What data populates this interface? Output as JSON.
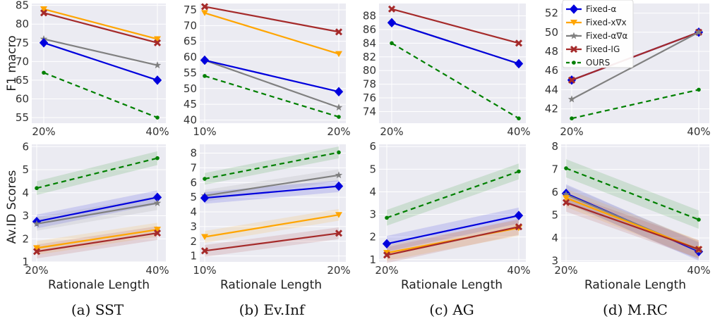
{
  "series_styles": {
    "Fixed-α": {
      "color": "#0000dd",
      "marker": "diamond",
      "dash": ""
    },
    "Fixed-x∇x": {
      "color": "#ffa500",
      "marker": "tri-down",
      "dash": ""
    },
    "Fixed-α∇α": {
      "color": "#808080",
      "marker": "star",
      "dash": ""
    },
    "Fixed-IG": {
      "color": "#a52a2a",
      "marker": "x",
      "dash": ""
    },
    "OURS": {
      "color": "#008000",
      "marker": "dot",
      "dash": "7,5"
    }
  },
  "legend": {
    "location": "top-right of panel (d), top row",
    "items": [
      "Fixed-α",
      "Fixed-x∇x",
      "Fixed-α∇α",
      "Fixed-IG",
      "OURS"
    ]
  },
  "row_labels": {
    "top_ylabel": "F1 macro",
    "bottom_ylabel": "Av.ID Scores",
    "xlabel": "Rationale Length"
  },
  "captions": [
    "(a) SST",
    "(b) Ev.Inf",
    "(c) AG",
    "(d) M.RC"
  ],
  "chart_data": [
    {
      "type": "line",
      "panel": "(a) SST",
      "row": "top",
      "categories": [
        "20%",
        "40%"
      ],
      "ylabel": "F1 macro",
      "yticks": [
        55,
        60,
        65,
        70,
        75,
        80,
        85
      ],
      "ylim": [
        53.5,
        85.5
      ],
      "series": [
        {
          "name": "Fixed-x∇x",
          "values": [
            84,
            76
          ]
        },
        {
          "name": "Fixed-IG",
          "values": [
            83,
            75
          ]
        },
        {
          "name": "Fixed-α∇α",
          "values": [
            76,
            69
          ]
        },
        {
          "name": "Fixed-α",
          "values": [
            75,
            65
          ]
        },
        {
          "name": "OURS",
          "values": [
            67,
            55
          ]
        }
      ]
    },
    {
      "type": "line",
      "panel": "(b) Ev.Inf",
      "row": "top",
      "categories": [
        "10%",
        "20%"
      ],
      "yticks": [
        40,
        45,
        50,
        55,
        60,
        65,
        70,
        75
      ],
      "ylim": [
        39,
        77
      ],
      "series": [
        {
          "name": "Fixed-IG",
          "values": [
            76,
            68
          ]
        },
        {
          "name": "Fixed-x∇x",
          "values": [
            74,
            61
          ]
        },
        {
          "name": "Fixed-α∇α",
          "values": [
            59,
            44
          ]
        },
        {
          "name": "Fixed-α",
          "values": [
            59,
            49
          ]
        },
        {
          "name": "OURS",
          "values": [
            54,
            41
          ]
        }
      ]
    },
    {
      "type": "line",
      "panel": "(c) AG",
      "row": "top",
      "categories": [
        "20%",
        "40%"
      ],
      "yticks": [
        74,
        76,
        78,
        80,
        82,
        84,
        86,
        88
      ],
      "ylim": [
        72.3,
        89.8
      ],
      "series": [
        {
          "name": "Fixed-IG",
          "values": [
            89,
            84
          ]
        },
        {
          "name": "Fixed-α∇α",
          "values": [
            87,
            81
          ]
        },
        {
          "name": "Fixed-α",
          "values": [
            87,
            81
          ]
        },
        {
          "name": "OURS",
          "values": [
            84,
            73
          ]
        }
      ]
    },
    {
      "type": "line",
      "panel": "(d) M.RC",
      "row": "top",
      "categories": [
        "20%",
        "40%"
      ],
      "yticks": [
        42,
        44,
        46,
        48,
        50,
        52
      ],
      "ylim": [
        40.5,
        53
      ],
      "series": [
        {
          "name": "Fixed-α",
          "values": [
            45,
            50
          ]
        },
        {
          "name": "Fixed-IG",
          "values": [
            45,
            50
          ]
        },
        {
          "name": "Fixed-α∇α",
          "values": [
            43,
            50
          ]
        },
        {
          "name": "OURS",
          "values": [
            41,
            44
          ]
        }
      ]
    },
    {
      "type": "line",
      "panel": "(a) SST",
      "row": "bottom",
      "categories": [
        "20%",
        "40%"
      ],
      "ylabel": "Av.ID Scores",
      "xlabel": "Rationale Length",
      "yticks": [
        1,
        2,
        3,
        4,
        5,
        6
      ],
      "ylim": [
        1,
        6.1
      ],
      "band": 0.3,
      "series": [
        {
          "name": "OURS",
          "values": [
            4.2,
            5.5
          ]
        },
        {
          "name": "Fixed-α",
          "values": [
            2.75,
            3.8
          ]
        },
        {
          "name": "Fixed-α∇α",
          "values": [
            2.65,
            3.55
          ]
        },
        {
          "name": "Fixed-x∇x",
          "values": [
            1.6,
            2.4
          ]
        },
        {
          "name": "Fixed-IG",
          "values": [
            1.45,
            2.25
          ]
        }
      ]
    },
    {
      "type": "line",
      "panel": "(b) Ev.Inf",
      "row": "bottom",
      "categories": [
        "10%",
        "20%"
      ],
      "xlabel": "Rationale Length",
      "yticks": [
        1,
        2,
        3,
        4,
        5,
        6,
        7,
        8
      ],
      "ylim": [
        0.6,
        8.6
      ],
      "band": 0.4,
      "series": [
        {
          "name": "OURS",
          "values": [
            6.25,
            8.05
          ]
        },
        {
          "name": "Fixed-α∇α",
          "values": [
            5.1,
            6.5
          ]
        },
        {
          "name": "Fixed-α",
          "values": [
            4.95,
            5.75
          ]
        },
        {
          "name": "Fixed-x∇x",
          "values": [
            2.3,
            3.8
          ]
        },
        {
          "name": "Fixed-IG",
          "values": [
            1.35,
            2.55
          ]
        }
      ]
    },
    {
      "type": "line",
      "panel": "(c) AG",
      "row": "bottom",
      "categories": [
        "20%",
        "40%"
      ],
      "xlabel": "Rationale Length",
      "yticks": [
        1,
        2,
        3,
        4,
        5,
        6
      ],
      "ylim": [
        0.9,
        6.1
      ],
      "band": 0.35,
      "series": [
        {
          "name": "OURS",
          "values": [
            2.85,
            4.9
          ]
        },
        {
          "name": "Fixed-α",
          "values": [
            1.7,
            2.95
          ]
        },
        {
          "name": "Fixed-x∇x",
          "values": [
            1.3,
            2.4
          ]
        },
        {
          "name": "Fixed-IG",
          "values": [
            1.2,
            2.45
          ]
        }
      ]
    },
    {
      "type": "line",
      "panel": "(d) M.RC",
      "row": "bottom",
      "categories": [
        "20%",
        "40%"
      ],
      "xlabel": "Rationale Length",
      "yticks": [
        3,
        4,
        5,
        6,
        7,
        8
      ],
      "ylim": [
        2.95,
        8.1
      ],
      "band": 0.4,
      "series": [
        {
          "name": "OURS",
          "values": [
            7.05,
            4.8
          ]
        },
        {
          "name": "Fixed-α",
          "values": [
            5.95,
            3.4
          ]
        },
        {
          "name": "Fixed-α∇α",
          "values": [
            5.9,
            3.45
          ]
        },
        {
          "name": "Fixed-x∇x",
          "values": [
            5.75,
            3.5
          ]
        },
        {
          "name": "Fixed-IG",
          "values": [
            5.55,
            3.5
          ]
        }
      ]
    }
  ]
}
